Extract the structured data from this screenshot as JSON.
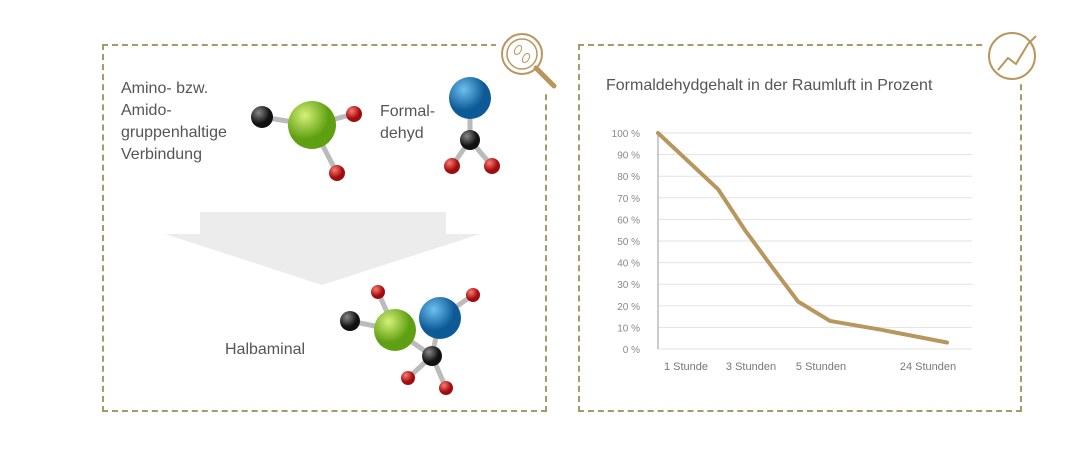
{
  "reaction": {
    "reactant1_lines": [
      "Amino- bzw.",
      "Amido-",
      "gruppenhaltige",
      "Verbindung"
    ],
    "reactant2_lines": [
      "Formal-",
      "dehyd"
    ],
    "product": "Halbaminal"
  },
  "icons": {
    "left": "magnifier-bacteria-icon",
    "right": "chart-trend-icon"
  },
  "colors": {
    "line": "#b8975f",
    "border": "#a59a6a",
    "green": "#7dc21e",
    "blue": "#1779b8",
    "red": "#c4161c",
    "dark": "#333333"
  },
  "chart_data": {
    "type": "line",
    "title": "Formaldehydgehalt in der Raumluft in Prozent",
    "xlabel": "",
    "ylabel": "",
    "ylim": [
      0,
      100
    ],
    "yticks": [
      "0 %",
      "10 %",
      "20 %",
      "30 %",
      "40 %",
      "50 %",
      "60 %",
      "70 %",
      "80 %",
      "90 %",
      "100 %"
    ],
    "xticks": [
      "1 Stunde",
      "3 Stunden",
      "5 Stunden",
      "24 Stunden"
    ],
    "grid": true,
    "series": [
      {
        "values": [
          100,
          74,
          55,
          38,
          22,
          13,
          9,
          3
        ]
      }
    ]
  }
}
